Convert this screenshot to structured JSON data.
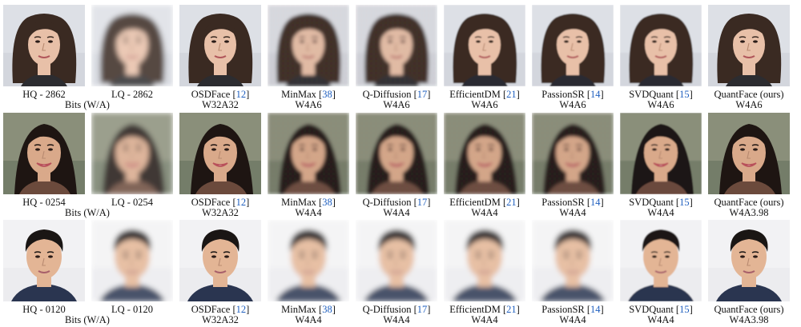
{
  "colors": {
    "ref_link": "#1f5fbf"
  },
  "rows": [
    {
      "face": "woman-curly-hair",
      "cells": [
        {
          "title": "HQ - 2862",
          "ref": "",
          "suffix": "",
          "bits": "Bits (W/A)",
          "quality": "hq"
        },
        {
          "title": "LQ - 2862",
          "ref": "",
          "suffix": "",
          "bits": "",
          "quality": "lq"
        },
        {
          "title": "OSDFace [",
          "ref": "12",
          "suffix": "]",
          "bits": "W32A32",
          "quality": "hq"
        },
        {
          "title": "MinMax [",
          "ref": "38",
          "suffix": "]",
          "bits": "W4A6",
          "quality": "noisy"
        },
        {
          "title": "Q-Diffusion [",
          "ref": "17",
          "suffix": "]",
          "bits": "W4A6",
          "quality": "noisy"
        },
        {
          "title": "EfficientDM [",
          "ref": "21",
          "suffix": "]",
          "bits": "W4A6",
          "quality": "soft"
        },
        {
          "title": "PassionSR [",
          "ref": "14",
          "suffix": "]",
          "bits": "W4A6",
          "quality": "soft"
        },
        {
          "title": "SVDQuant [",
          "ref": "15",
          "suffix": "]",
          "bits": "W4A6",
          "quality": "soft"
        },
        {
          "title": "QuantFace (ours)",
          "ref": "",
          "suffix": "",
          "bits": "W4A6",
          "quality": "hq"
        }
      ]
    },
    {
      "face": "woman-smiling",
      "cells": [
        {
          "title": "HQ - 0254",
          "ref": "",
          "suffix": "",
          "bits": "Bits (W/A)",
          "quality": "hq"
        },
        {
          "title": "LQ - 0254",
          "ref": "",
          "suffix": "",
          "bits": "",
          "quality": "lq"
        },
        {
          "title": "OSDFace [",
          "ref": "12",
          "suffix": "]",
          "bits": "W32A32",
          "quality": "hq"
        },
        {
          "title": "MinMax [",
          "ref": "38",
          "suffix": "]",
          "bits": "W4A4",
          "quality": "noisy"
        },
        {
          "title": "Q-Diffusion [",
          "ref": "17",
          "suffix": "]",
          "bits": "W4A4",
          "quality": "noisy"
        },
        {
          "title": "EfficientDM [",
          "ref": "21",
          "suffix": "]",
          "bits": "W4A4",
          "quality": "noisy"
        },
        {
          "title": "PassionSR [",
          "ref": "14",
          "suffix": "]",
          "bits": "W4A4",
          "quality": "noisy"
        },
        {
          "title": "SVDQuant [",
          "ref": "15",
          "suffix": "]",
          "bits": "W4A4",
          "quality": "soft"
        },
        {
          "title": "QuantFace (ours)",
          "ref": "",
          "suffix": "",
          "bits": "W4A3.98",
          "quality": "hq"
        }
      ]
    },
    {
      "face": "young-man",
      "cells": [
        {
          "title": "HQ - 0120",
          "ref": "",
          "suffix": "",
          "bits": "Bits (W/A)",
          "quality": "hq"
        },
        {
          "title": "LQ - 0120",
          "ref": "",
          "suffix": "",
          "bits": "",
          "quality": "lq"
        },
        {
          "title": "OSDFace [",
          "ref": "12",
          "suffix": "]",
          "bits": "W32A32",
          "quality": "hq"
        },
        {
          "title": "MinMax [",
          "ref": "38",
          "suffix": "]",
          "bits": "W4A4",
          "quality": "lq"
        },
        {
          "title": "Q-Diffusion [",
          "ref": "17",
          "suffix": "]",
          "bits": "W4A4",
          "quality": "lq"
        },
        {
          "title": "EfficientDM [",
          "ref": "21",
          "suffix": "]",
          "bits": "W4A4",
          "quality": "lq"
        },
        {
          "title": "PassionSR [",
          "ref": "14",
          "suffix": "]",
          "bits": "W4A4",
          "quality": "lq"
        },
        {
          "title": "SVDQuant [",
          "ref": "15",
          "suffix": "]",
          "bits": "W4A4",
          "quality": "soft"
        },
        {
          "title": "QuantFace (ours)",
          "ref": "",
          "suffix": "",
          "bits": "W4A3.98",
          "quality": "hq"
        }
      ]
    }
  ]
}
